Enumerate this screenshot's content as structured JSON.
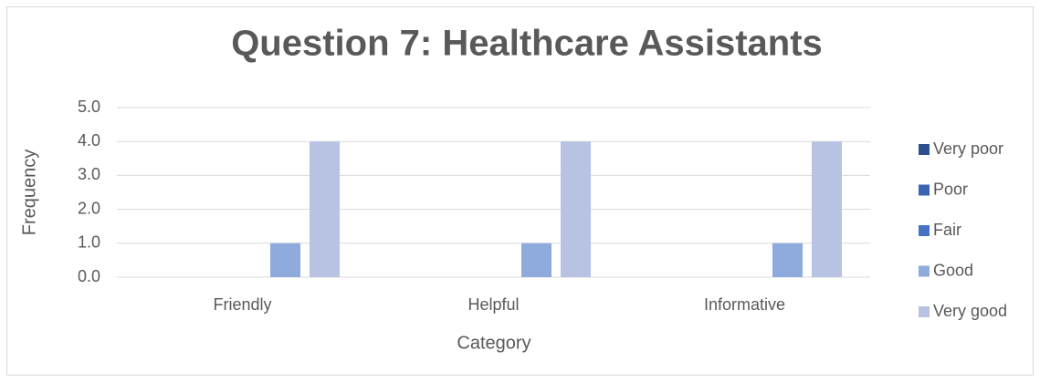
{
  "chart_data": {
    "type": "bar",
    "title": "Question 7: Healthcare Assistants",
    "x_label": "Category",
    "y_label": "Frequency",
    "categories": [
      "Friendly",
      "Helpful",
      "Informative"
    ],
    "series": [
      {
        "name": "Very poor",
        "color": "#2e4f8f",
        "values": [
          0,
          0,
          0
        ]
      },
      {
        "name": "Poor",
        "color": "#3a64b0",
        "values": [
          0,
          0,
          0
        ]
      },
      {
        "name": "Fair",
        "color": "#4472c4",
        "values": [
          0,
          0,
          0
        ]
      },
      {
        "name": "Good",
        "color": "#8faadc",
        "values": [
          1,
          1,
          1
        ]
      },
      {
        "name": "Very good",
        "color": "#b8c3e3",
        "values": [
          4,
          4,
          4
        ]
      }
    ],
    "ylim": [
      0,
      5
    ],
    "yticks": [
      {
        "value": 0,
        "label": "0.0"
      },
      {
        "value": 1,
        "label": "1.0"
      },
      {
        "value": 2,
        "label": "2.0"
      },
      {
        "value": 3,
        "label": "3.0"
      },
      {
        "value": 4,
        "label": "4.0"
      },
      {
        "value": 5,
        "label": "5.0"
      }
    ],
    "grid": true,
    "legend": "right"
  }
}
